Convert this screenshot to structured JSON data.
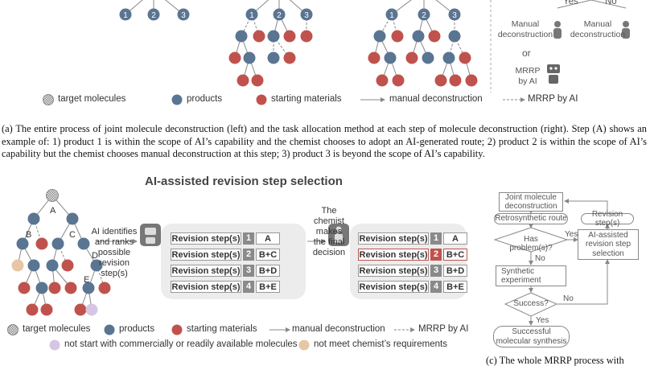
{
  "top": {
    "trees": [
      [
        "1",
        "2",
        "3"
      ],
      [
        "1",
        "2",
        "3"
      ],
      [
        "1",
        "2",
        "3"
      ]
    ],
    "yes": "Yes",
    "no": "No",
    "manual_left": "Manual deconstruction",
    "manual_right": "Manual deconstruction",
    "or": "or",
    "mrrp": "MRRP by AI",
    "legend": [
      "target molecules",
      "products",
      "starting materials",
      "manual deconstruction",
      "MRRP by AI"
    ]
  },
  "caption_a": "(a)  The entire process of joint molecule deconstruction (left) and the task allocation method at each step of molecule deconstruction (right). Step (A) shows an example of: 1) product 1 is within the scope of AI’s capability and the chemist chooses to adopt an AI-generated route; 2) product 2 is within the scope of AI’s capability but the chemist chooses manual deconstruction at this step; 3) product 3 is beyond the scope of AI’s capability.",
  "panel_b": {
    "title": "AI-assisted revision step selection",
    "tree_labels": [
      "A",
      "B",
      "C",
      "D",
      "E"
    ],
    "ai_text": "AI identifies and ranks possible revision step(s)",
    "chemist_text": "The chemist makes the final decision",
    "tables": [
      [
        [
          "Revision step(s)",
          "1",
          "A"
        ],
        [
          "Revision step(s)",
          "2",
          "B+C"
        ],
        [
          "Revision step(s)",
          "3",
          "B+D"
        ],
        [
          "Revision step(s)",
          "4",
          "B+E"
        ]
      ],
      [
        [
          "Revision step(s)",
          "1",
          "A"
        ],
        [
          "Revision step(s)",
          "2",
          "B+C"
        ],
        [
          "Revision step(s)",
          "3",
          "B+D"
        ],
        [
          "Revision step(s)",
          "4",
          "B+E"
        ]
      ]
    ],
    "legend": [
      "target molecules",
      "products",
      "starting materials",
      "manual deconstruction",
      "MRRP by AI"
    ],
    "legend_extra": [
      "not start with commercially or readily available molecules",
      "not meet chemist’s requirements"
    ]
  },
  "panel_c": {
    "joint": "Joint molecule deconstruction",
    "route": "Retrosynthetic route",
    "revision": "Revision step(s)",
    "has_problem": "Has problem(s)?",
    "yes1": "Yes",
    "ai_box": "AI-assisted revision step selection",
    "no1": "No",
    "experiment": "Synthetic experiment",
    "success": "Success?",
    "no2": "No",
    "yes2": "Yes",
    "final": "Successful molecular synthesis"
  },
  "caption_c": "(c)  The whole MRRP process with"
}
